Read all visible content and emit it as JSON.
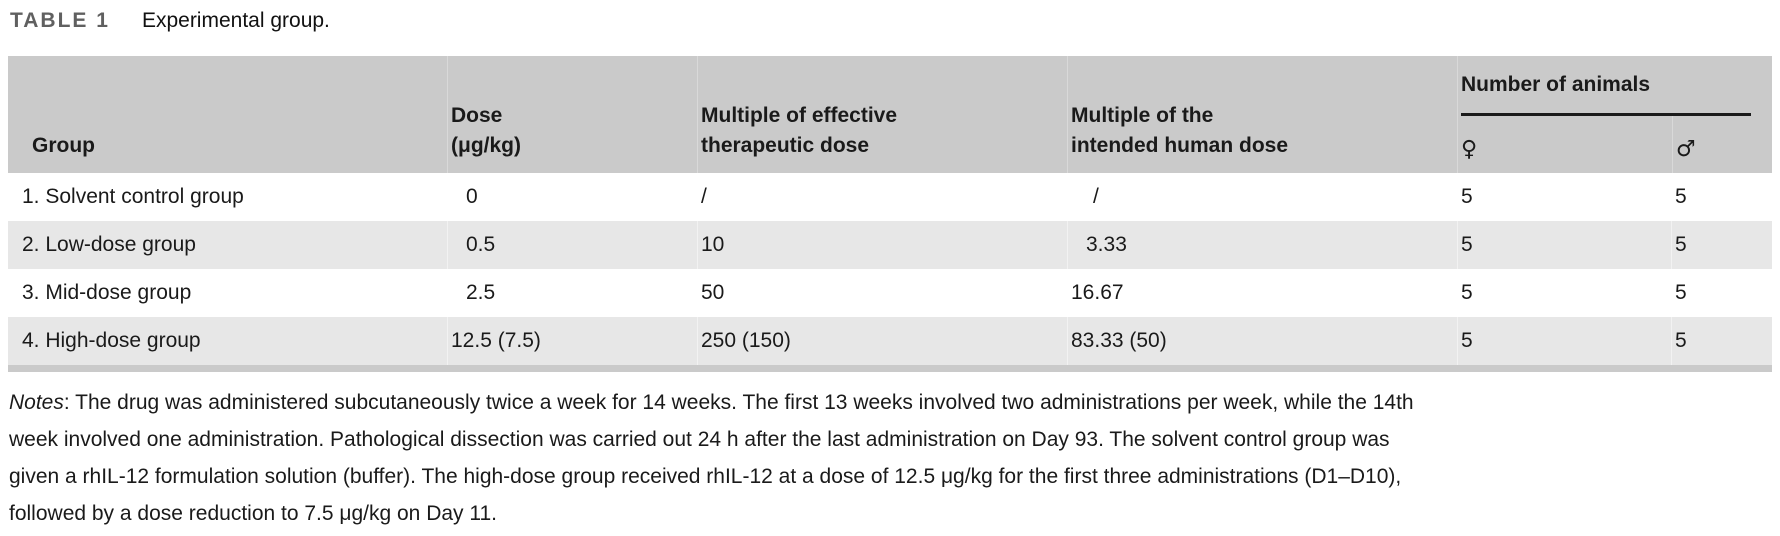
{
  "title": {
    "label": "TABLE 1",
    "caption": "Experimental group."
  },
  "table": {
    "headers": {
      "group": "Group",
      "dose": "Dose\n(μg/kg)",
      "multiple_effective": "Multiple of effective\ntherapeutic dose",
      "multiple_human": "Multiple of the\nintended human dose",
      "animals": "Number of animals",
      "female": "♀",
      "male": "♂"
    },
    "rows": [
      {
        "group": "1. Solvent control group",
        "dose": "0",
        "multiple_effective": "/",
        "multiple_human": "/",
        "female": "5",
        "male": "5"
      },
      {
        "group": "2. Low-dose group",
        "dose": "0.5",
        "multiple_effective": "10",
        "multiple_human": "3.33",
        "female": "5",
        "male": "5"
      },
      {
        "group": "3. Mid-dose group",
        "dose": "2.5",
        "multiple_effective": "50",
        "multiple_human": "16.67",
        "female": "5",
        "male": "5"
      },
      {
        "group": "4. High-dose group",
        "dose": "12.5 (7.5)",
        "multiple_effective": "250 (150)",
        "multiple_human": "83.33 (50)",
        "female": "5",
        "male": "5"
      }
    ]
  },
  "notes": {
    "label": "Notes",
    "lines": [
      ": The drug was administered subcutaneously twice a week for 14 weeks. The first 13 weeks involved two administrations per week, while the 14th",
      "week involved one administration. Pathological dissection was carried out 24 h after the last administration on Day 93. The solvent control group was",
      "given a rhIL-12 formulation solution (buffer). The high-dose group received rhIL-12 at a dose of 12.5 μg/kg for the first three administrations (D1–D10),",
      "followed by a dose reduction to 7.5 μg/kg on Day 11."
    ]
  },
  "colors": {
    "header_bg": "#cacaca",
    "stripe_bg": "#e7e7e7",
    "rule": "#1a1a1a",
    "title_label": "#606060",
    "text": "#1a1a1a"
  }
}
